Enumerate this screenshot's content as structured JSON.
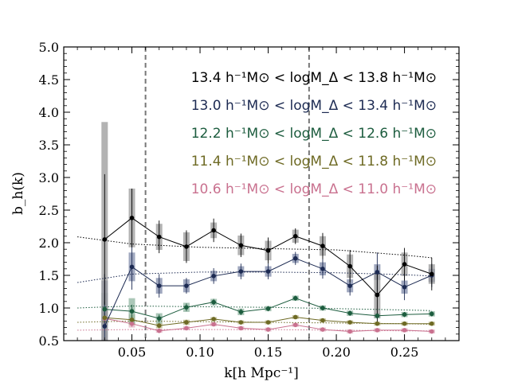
{
  "chart_data": {
    "type": "line",
    "xlabel": "k[h Mpc⁻¹]",
    "ylabel": "b_h(k)",
    "xlim": [
      0.0,
      0.29
    ],
    "ylim": [
      0.5,
      5.0
    ],
    "x_ticks": [
      0.05,
      0.1,
      0.15,
      0.2,
      0.25
    ],
    "x_tick_labels": [
      "0.05",
      "0.10",
      "0.15",
      "0.20",
      "0.25"
    ],
    "y_ticks": [
      0.5,
      1.0,
      1.5,
      2.0,
      2.5,
      3.0,
      3.5,
      4.0,
      4.5,
      5.0
    ],
    "y_tick_labels": [
      "0.5",
      "1.0",
      "1.5",
      "2.0",
      "2.5",
      "3.0",
      "3.5",
      "4.0",
      "4.5",
      "5.0"
    ],
    "vlines": [
      0.06,
      0.18
    ],
    "x": [
      0.03,
      0.05,
      0.07,
      0.09,
      0.11,
      0.13,
      0.15,
      0.17,
      0.19,
      0.21,
      0.23,
      0.25,
      0.27
    ],
    "series": [
      {
        "name": "13.4 h⁻¹M⊙ < logM_Δ < 13.8 h⁻¹M⊙",
        "color": "#000000",
        "band": "#9a9a9a",
        "values": [
          2.05,
          2.38,
          2.09,
          1.94,
          2.19,
          1.96,
          1.88,
          2.1,
          1.95,
          1.64,
          1.2,
          1.67,
          1.52
        ],
        "err": [
          1.0,
          0.45,
          0.25,
          0.25,
          0.18,
          0.18,
          0.2,
          0.12,
          0.2,
          0.25,
          0.45,
          0.25,
          0.25
        ],
        "band_err": [
          1.8,
          0.45,
          0.2,
          0.22,
          0.12,
          0.15,
          0.15,
          0.1,
          0.15,
          0.18,
          0.35,
          0.18,
          0.15
        ],
        "theory_x": [
          0.01,
          0.05,
          0.1,
          0.15,
          0.2,
          0.25,
          0.27
        ],
        "theory": [
          2.09,
          1.98,
          1.93,
          1.91,
          1.89,
          1.81,
          1.77
        ]
      },
      {
        "name": "13.0 h⁻¹M⊙ < logM_Δ < 13.4 h⁻¹M⊙",
        "color": "#1c2a52",
        "band": "#7f8aa8",
        "values": [
          0.72,
          1.63,
          1.34,
          1.34,
          1.49,
          1.56,
          1.56,
          1.76,
          1.6,
          1.34,
          1.55,
          1.32,
          1.5
        ],
        "err": [
          0.8,
          0.35,
          0.18,
          0.12,
          0.12,
          0.12,
          0.12,
          0.1,
          0.15,
          0.15,
          0.3,
          0.2,
          0.18
        ],
        "band_err": [
          0.7,
          0.22,
          0.12,
          0.1,
          0.08,
          0.08,
          0.08,
          0.07,
          0.1,
          0.1,
          0.12,
          0.1,
          0.1
        ],
        "theory_x": [
          0.01,
          0.05,
          0.1,
          0.15,
          0.2,
          0.25,
          0.27
        ],
        "theory": [
          1.39,
          1.52,
          1.55,
          1.55,
          1.54,
          1.51,
          1.49
        ]
      },
      {
        "name": "12.2 h⁻¹M⊙ < logM_Δ < 12.6 h⁻¹M⊙",
        "color": "#1c5c3e",
        "band": "#8fb4a0",
        "values": [
          0.98,
          0.95,
          0.84,
          1.01,
          1.09,
          0.94,
          0.99,
          1.15,
          1.0,
          0.92,
          0.88,
          0.9,
          0.91
        ],
        "err": [
          0.12,
          0.1,
          0.06,
          0.06,
          0.05,
          0.05,
          0.04,
          0.04,
          0.04,
          0.04,
          0.04,
          0.04,
          0.04
        ],
        "band_err": [
          0.25,
          0.2,
          0.08,
          0.07,
          0.05,
          0.05,
          0.04,
          0.04,
          0.04,
          0.04,
          0.04,
          0.04,
          0.04
        ],
        "theory_x": [
          0.01,
          0.05,
          0.1,
          0.15,
          0.2,
          0.25,
          0.27
        ],
        "theory": [
          1.0,
          1.03,
          1.02,
          1.01,
          0.99,
          0.97,
          0.96
        ]
      },
      {
        "name": "11.4 h⁻¹M⊙ < logM_Δ < 11.8 h⁻¹M⊙",
        "color": "#6e6a24",
        "band": "#bcb88a",
        "values": [
          0.85,
          0.82,
          0.73,
          0.78,
          0.83,
          0.78,
          0.78,
          0.86,
          0.81,
          0.78,
          0.76,
          0.76,
          0.76
        ],
        "err": [
          0.08,
          0.06,
          0.04,
          0.04,
          0.03,
          0.03,
          0.03,
          0.03,
          0.03,
          0.03,
          0.03,
          0.03,
          0.03
        ],
        "band_err": [
          0.12,
          0.08,
          0.04,
          0.04,
          0.03,
          0.03,
          0.03,
          0.03,
          0.03,
          0.03,
          0.03,
          0.03,
          0.03
        ],
        "theory_x": [
          0.01,
          0.05,
          0.1,
          0.15,
          0.2,
          0.25,
          0.27
        ],
        "theory": [
          0.78,
          0.8,
          0.79,
          0.78,
          0.77,
          0.76,
          0.75
        ]
      },
      {
        "name": "10.6 h⁻¹M⊙ < logM_Δ < 11.0 h⁻¹M⊙",
        "color": "#c9718f",
        "band": "#e2b0c2",
        "values": [
          0.84,
          0.76,
          0.65,
          0.69,
          0.75,
          0.69,
          0.67,
          0.74,
          0.67,
          0.64,
          0.66,
          0.66,
          0.64
        ],
        "err": [
          0.08,
          0.05,
          0.03,
          0.03,
          0.03,
          0.03,
          0.03,
          0.03,
          0.03,
          0.03,
          0.03,
          0.03,
          0.03
        ],
        "band_err": [
          0.1,
          0.06,
          0.03,
          0.03,
          0.03,
          0.03,
          0.03,
          0.03,
          0.03,
          0.03,
          0.03,
          0.03,
          0.03
        ],
        "theory_x": [
          0.01,
          0.05,
          0.1,
          0.15,
          0.2,
          0.25,
          0.27
        ],
        "theory": [
          0.66,
          0.67,
          0.67,
          0.67,
          0.66,
          0.65,
          0.65
        ]
      }
    ]
  }
}
